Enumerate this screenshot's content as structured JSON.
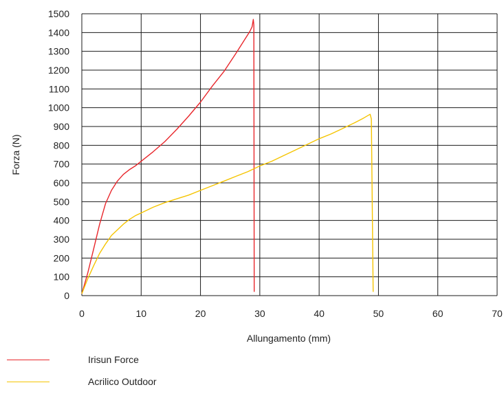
{
  "chart_data": {
    "type": "line",
    "xlabel": "Allungamento (mm)",
    "ylabel": "Forza (N)",
    "xlim": [
      0,
      70
    ],
    "ylim": [
      0,
      1500
    ],
    "x_ticks": [
      "0",
      "10",
      "20",
      "30",
      "40",
      "50",
      "60",
      "70"
    ],
    "y_ticks": [
      "0",
      "100",
      "200",
      "300",
      "400",
      "500",
      "600",
      "700",
      "800",
      "900",
      "1000",
      "1100",
      "1200",
      "1300",
      "1400",
      "1500"
    ],
    "grid": true,
    "legend_position": "bottom-left",
    "series": [
      {
        "name": "Irisun Force",
        "color": "#e8262b",
        "points": [
          [
            0,
            10
          ],
          [
            1,
            120
          ],
          [
            2,
            250
          ],
          [
            3,
            380
          ],
          [
            4,
            490
          ],
          [
            5,
            560
          ],
          [
            6,
            610
          ],
          [
            7,
            645
          ],
          [
            8,
            670
          ],
          [
            9,
            690
          ],
          [
            10,
            715
          ],
          [
            12,
            765
          ],
          [
            14,
            820
          ],
          [
            16,
            885
          ],
          [
            18,
            955
          ],
          [
            20,
            1030
          ],
          [
            22,
            1115
          ],
          [
            24,
            1195
          ],
          [
            26,
            1290
          ],
          [
            27.5,
            1365
          ],
          [
            28.3,
            1405
          ],
          [
            28.7,
            1430
          ],
          [
            28.9,
            1470
          ],
          [
            29.0,
            1440
          ],
          [
            29.05,
            20
          ]
        ]
      },
      {
        "name": "Acrilico Outdoor",
        "color": "#f5c400",
        "points": [
          [
            0,
            10
          ],
          [
            1,
            90
          ],
          [
            2,
            160
          ],
          [
            3,
            225
          ],
          [
            4,
            275
          ],
          [
            5,
            320
          ],
          [
            6,
            350
          ],
          [
            7,
            380
          ],
          [
            8,
            405
          ],
          [
            9,
            425
          ],
          [
            10,
            440
          ],
          [
            12,
            470
          ],
          [
            14,
            495
          ],
          [
            16,
            515
          ],
          [
            18,
            535
          ],
          [
            20,
            560
          ],
          [
            22,
            585
          ],
          [
            24,
            610
          ],
          [
            26,
            635
          ],
          [
            28,
            660
          ],
          [
            30,
            690
          ],
          [
            32,
            715
          ],
          [
            34,
            745
          ],
          [
            36,
            775
          ],
          [
            38,
            805
          ],
          [
            40,
            835
          ],
          [
            42,
            860
          ],
          [
            44,
            890
          ],
          [
            46,
            920
          ],
          [
            47.5,
            945
          ],
          [
            48.6,
            965
          ],
          [
            48.8,
            940
          ],
          [
            49.1,
            20
          ]
        ]
      }
    ]
  }
}
